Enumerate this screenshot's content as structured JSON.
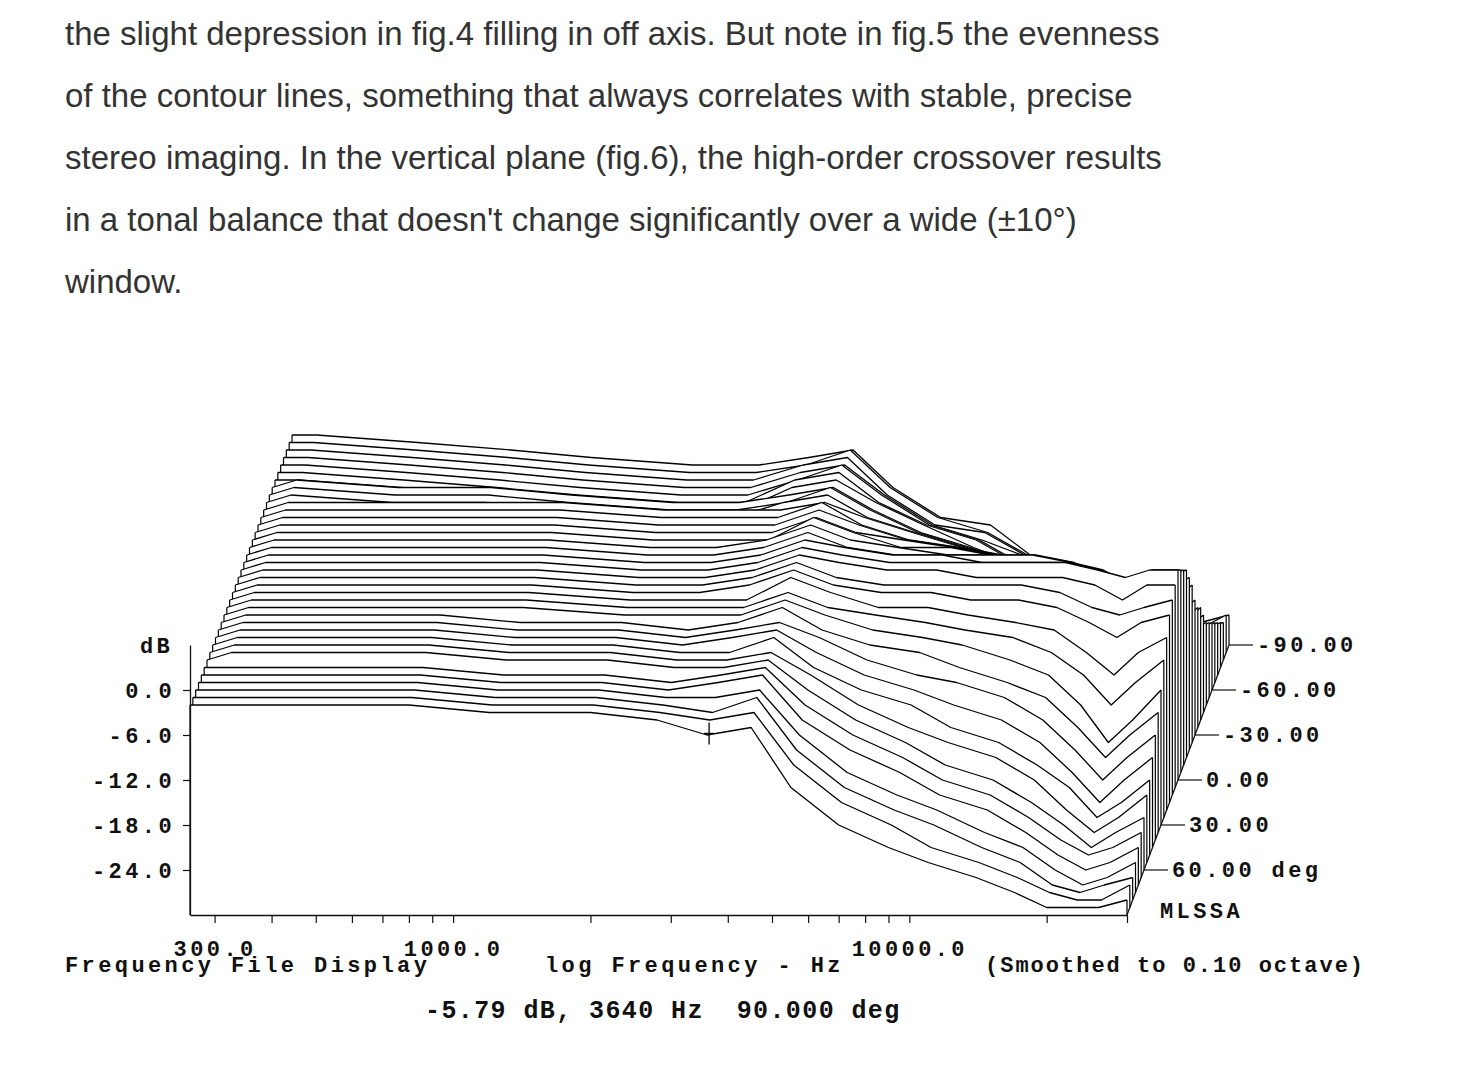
{
  "article": {
    "lines": [
      "the slight depression in fig.4 filling in off axis. But note in fig.5 the evenness",
      "of the contour lines, something that always correlates with stable, precise",
      "stereo imaging. In the vertical plane (fig.6), the high-order crossover results",
      "in a tonal balance that doesn't change significantly over a wide (±10°)",
      "window."
    ]
  },
  "chart_data": {
    "type": "waterfall",
    "log": "x",
    "color": "#000000",
    "x_label": "log Frequency - Hz",
    "y_label": "dB",
    "annotations": [
      "Frequency File Display",
      "(Smoothed to 0.10 octave)",
      "MLSSA"
    ],
    "xlim": [
      265,
      30000
    ],
    "xticks": [
      {
        "value": 300,
        "label": "300.0"
      },
      {
        "value": 400,
        "label": null
      },
      {
        "value": 500,
        "label": null
      },
      {
        "value": 600,
        "label": null
      },
      {
        "value": 700,
        "label": null
      },
      {
        "value": 800,
        "label": null
      },
      {
        "value": 900,
        "label": null
      },
      {
        "value": 1000,
        "label": "1000.0"
      },
      {
        "value": 2000,
        "label": null
      },
      {
        "value": 3000,
        "label": null
      },
      {
        "value": 4000,
        "label": null
      },
      {
        "value": 5000,
        "label": null
      },
      {
        "value": 6000,
        "label": null
      },
      {
        "value": 7000,
        "label": null
      },
      {
        "value": 8000,
        "label": null
      },
      {
        "value": 9000,
        "label": null
      },
      {
        "value": 10000,
        "label": "10000.0"
      },
      {
        "value": 20000,
        "label": null
      },
      {
        "value": 30000,
        "label": null
      }
    ],
    "ylim": [
      -30,
      6
    ],
    "yticks": [
      {
        "value": 0,
        "label": "0.0"
      },
      {
        "value": -6,
        "label": "-6.0"
      },
      {
        "value": -12,
        "label": "-12.0"
      },
      {
        "value": -18,
        "label": "-18.0"
      },
      {
        "value": -24,
        "label": "-24.0"
      }
    ],
    "zlim": [
      -90,
      90
    ],
    "zticks": [
      {
        "value": -90,
        "label": "-90.00"
      },
      {
        "value": -60,
        "label": "-60.00"
      },
      {
        "value": -30,
        "label": "-30.00"
      },
      {
        "value": 0,
        "label": "0.00"
      },
      {
        "value": 30,
        "label": "30.00"
      },
      {
        "value": 60,
        "label": "60.00 deg"
      }
    ],
    "cursor": {
      "x": 3640,
      "y": -5.79,
      "angle": 90,
      "label": "-5.79 dB, 3640 Hz  90.000 deg"
    },
    "x": [
      265,
      300,
      500,
      800,
      1200,
      2000,
      2800,
      3600,
      4500,
      5500,
      7000,
      9000,
      11000,
      14000,
      17000,
      20000,
      23000,
      26000,
      30000
    ],
    "series": [
      {
        "angle": -90,
        "values": [
          -2,
          -2,
          -3,
          -4,
          -5,
          -6,
          -6,
          -5,
          -4,
          -9,
          -13,
          -14,
          -18,
          -21,
          -24,
          -26,
          -28,
          -27,
          -26
        ]
      },
      {
        "angle": -85,
        "values": [
          -2,
          -2,
          -3,
          -4,
          -5,
          -6,
          -6,
          -5,
          -3,
          -8,
          -12,
          -14,
          -17,
          -20,
          -23,
          -26,
          -28,
          -27,
          -25
        ]
      },
      {
        "angle": -80,
        "values": [
          -2,
          -2,
          -3,
          -4,
          -5,
          -6,
          -6,
          -4,
          -3,
          -8,
          -12,
          -13,
          -16,
          -19,
          -22,
          -25,
          -27,
          -26,
          -25
        ]
      },
      {
        "angle": -75,
        "values": [
          -2,
          -2,
          -3,
          -4,
          -5,
          -6,
          -6,
          -4,
          -3,
          -7,
          -11,
          -13,
          -15,
          -18,
          -21,
          -24,
          -26,
          -26,
          -24
        ]
      },
      {
        "angle": -70,
        "values": [
          -2,
          -2,
          -3,
          -4,
          -5,
          -6,
          -6,
          -4,
          -2,
          -6,
          -10,
          -12,
          -15,
          -17,
          -20,
          -23,
          -26,
          -25,
          -23
        ]
      },
      {
        "angle": -65,
        "values": [
          -2,
          -2,
          -3,
          -4,
          -5,
          -6,
          -6,
          -3,
          -2,
          -6,
          -9,
          -11,
          -14,
          -16,
          -19,
          -22,
          -25,
          -24,
          -22
        ]
      },
      {
        "angle": -60,
        "values": [
          -2,
          -2,
          -3,
          -4,
          -5,
          -6,
          -6,
          -3,
          -2,
          -5,
          -8,
          -11,
          -13,
          -15,
          -18,
          -21,
          -24,
          -23,
          -21
        ]
      },
      {
        "angle": -55,
        "values": [
          -2,
          -1,
          -2,
          -2,
          -3,
          -4,
          -4,
          -3,
          -2,
          -5,
          -8,
          -10,
          -12,
          -14,
          -17,
          -21,
          -24,
          -22,
          -20
        ]
      },
      {
        "angle": -50,
        "values": [
          -2,
          -1,
          -2,
          -2,
          -3,
          -4,
          -4,
          -3,
          -1,
          -4,
          -7,
          -9,
          -11,
          -13,
          -16,
          -20,
          -23,
          -21,
          -19
        ]
      },
      {
        "angle": -45,
        "values": [
          -2,
          -1,
          -2,
          -2,
          -3,
          -4,
          -4,
          -2,
          -1,
          -4,
          -6,
          -8,
          -10,
          -12,
          -15,
          -19,
          -22,
          -20,
          -17
        ]
      },
      {
        "angle": -40,
        "values": [
          -2,
          -1,
          -1,
          -1,
          -1,
          -2,
          -2,
          -2,
          -1,
          -3,
          -5,
          -7,
          -8,
          -10,
          -13,
          -17,
          -21,
          -18,
          -15
        ]
      },
      {
        "angle": -35,
        "values": [
          -2,
          -1,
          -1,
          -1,
          -1,
          -2,
          -2,
          -2,
          0,
          -3,
          -5,
          -6,
          -7,
          -9,
          -11,
          -15,
          -19,
          -17,
          -14
        ]
      },
      {
        "angle": -30,
        "values": [
          -2,
          -1,
          -1,
          -1,
          -1,
          -2,
          -2,
          -2,
          0,
          -2,
          -4,
          -5,
          -6,
          -7,
          -9,
          -13,
          -18,
          -15,
          -12
        ]
      },
      {
        "angle": -25,
        "values": [
          -2,
          -1,
          -1,
          -1,
          -1,
          -2,
          -2,
          -2,
          0,
          -2,
          -3,
          -4,
          -5,
          -6,
          -8,
          -10,
          -14,
          -12,
          -9
        ]
      },
      {
        "angle": -20,
        "values": [
          -2,
          -1,
          -1,
          -1,
          -1,
          -2,
          -2,
          -2,
          1,
          -1,
          -3,
          -3,
          -4,
          -5,
          -6,
          -8,
          -11,
          -9,
          -7
        ]
      },
      {
        "angle": -15,
        "values": [
          -2,
          -1,
          -1,
          -1,
          -1,
          -2,
          -2,
          -1,
          1,
          -1,
          -2,
          -3,
          -3,
          -3,
          -4,
          -6,
          -7,
          -6,
          -5
        ]
      },
      {
        "angle": -10,
        "values": [
          -2,
          -1,
          -1,
          -1,
          -1,
          -2,
          -2,
          -1,
          1,
          -1,
          -2,
          -2,
          -2,
          -2,
          -3,
          -4,
          -6,
          -5,
          -4
        ]
      },
      {
        "angle": -5,
        "values": [
          -2,
          -1,
          -1,
          -1,
          -1,
          -2,
          -2,
          -1,
          1,
          0,
          -1,
          -1,
          -2,
          -2,
          -2,
          -3,
          -5,
          -3,
          -3
        ]
      },
      {
        "angle": 0,
        "values": [
          -2,
          -1,
          -1,
          -1,
          -1,
          -2,
          -2,
          -1,
          1,
          0,
          -1,
          -1,
          -1,
          -1,
          -1,
          -2,
          -3,
          -2,
          -2
        ]
      },
      {
        "angle": 5,
        "values": [
          -2,
          -1,
          -1,
          -1,
          -1,
          -2,
          -2,
          -1,
          1,
          0,
          -1,
          -1,
          -2,
          -2,
          -2,
          -3,
          -5,
          -3,
          -3
        ]
      },
      {
        "angle": 10,
        "values": [
          -2,
          -1,
          -1,
          -1,
          -1,
          -2,
          -2,
          -1,
          1,
          -1,
          -2,
          -2,
          -2,
          -2,
          -3,
          -5,
          -6,
          -5,
          -4
        ]
      },
      {
        "angle": 15,
        "values": [
          -2,
          -1,
          -1,
          -1,
          -1,
          -2,
          -2,
          -1,
          1,
          -1,
          -2,
          -2,
          -3,
          -3,
          -4,
          -6,
          -8,
          -6,
          -5
        ]
      },
      {
        "angle": 20,
        "values": [
          -2,
          -1,
          -1,
          -1,
          -1,
          -2,
          -2,
          -2,
          1,
          -1,
          -3,
          -3,
          -4,
          -5,
          -6,
          -9,
          -12,
          -9,
          -7
        ]
      },
      {
        "angle": 25,
        "values": [
          -2,
          -1,
          -1,
          -1,
          -1,
          -2,
          -2,
          -2,
          0,
          -2,
          -3,
          -4,
          -5,
          -6,
          -8,
          -11,
          -15,
          -12,
          -9
        ]
      },
      {
        "angle": 30,
        "values": [
          -2,
          -1,
          -1,
          -1,
          -1,
          -2,
          -2,
          -2,
          0,
          -2,
          -4,
          -5,
          -6,
          -8,
          -10,
          -14,
          -19,
          -16,
          -12
        ]
      },
      {
        "angle": 35,
        "values": [
          -2,
          -1,
          -1,
          -1,
          -2,
          -2,
          -3,
          -2,
          0,
          -3,
          -5,
          -6,
          -8,
          -10,
          -12,
          -16,
          -20,
          -17,
          -14
        ]
      },
      {
        "angle": 40,
        "values": [
          -2,
          -1,
          -1,
          -1,
          -2,
          -2,
          -3,
          -2,
          -1,
          -3,
          -6,
          -8,
          -9,
          -11,
          -14,
          -18,
          -22,
          -19,
          -16
        ]
      },
      {
        "angle": 45,
        "values": [
          -2,
          -1,
          -1,
          -1,
          -2,
          -2,
          -3,
          -2,
          -1,
          -4,
          -7,
          -9,
          -11,
          -13,
          -16,
          -20,
          -24,
          -21,
          -18
        ]
      },
      {
        "angle": 50,
        "values": [
          -2,
          -1,
          -1,
          -1,
          -2,
          -2,
          -3,
          -3,
          -1,
          -5,
          -8,
          -10,
          -13,
          -15,
          -18,
          -21,
          -25,
          -23,
          -20
        ]
      },
      {
        "angle": 55,
        "values": [
          -2,
          -1,
          -1,
          -1,
          -2,
          -2,
          -3,
          -3,
          -2,
          -5,
          -9,
          -12,
          -14,
          -16,
          -19,
          -23,
          -26,
          -24,
          -21
        ]
      },
      {
        "angle": 60,
        "values": [
          -2,
          -1,
          -1,
          -1,
          -2,
          -2,
          -3,
          -3,
          -2,
          -6,
          -10,
          -13,
          -16,
          -18,
          -21,
          -24,
          -27,
          -25,
          -23
        ]
      },
      {
        "angle": 65,
        "values": [
          -2,
          -2,
          -2,
          -2,
          -3,
          -3,
          -4,
          -3,
          -2,
          -7,
          -11,
          -14,
          -17,
          -19,
          -22,
          -25,
          -27,
          -26,
          -24
        ]
      },
      {
        "angle": 70,
        "values": [
          -2,
          -2,
          -2,
          -2,
          -3,
          -3,
          -4,
          -3,
          -2,
          -8,
          -12,
          -15,
          -18,
          -20,
          -23,
          -26,
          -28,
          -27,
          -25
        ]
      },
      {
        "angle": 75,
        "values": [
          -2,
          -2,
          -2,
          -2,
          -3,
          -3,
          -4,
          -4,
          -3,
          -9,
          -14,
          -17,
          -19,
          -22,
          -24,
          -27,
          -29,
          -28,
          -26
        ]
      },
      {
        "angle": 80,
        "values": [
          -2,
          -2,
          -2,
          -2,
          -3,
          -3,
          -4,
          -5,
          -3,
          -10,
          -15,
          -18,
          -20,
          -23,
          -25,
          -28,
          -29,
          -28,
          -27
        ]
      },
      {
        "angle": 85,
        "values": [
          -2,
          -2,
          -2,
          -2,
          -3,
          -3,
          -4,
          -5,
          -4,
          -11,
          -16,
          -19,
          -22,
          -24,
          -26,
          -28,
          -29,
          -29,
          -27
        ]
      },
      {
        "angle": 90,
        "values": [
          -2,
          -2,
          -2,
          -2,
          -3,
          -3,
          -4,
          -6,
          -5,
          -13,
          -18,
          -21,
          -23,
          -25,
          -27,
          -29,
          -29,
          -29,
          -28
        ]
      }
    ]
  }
}
